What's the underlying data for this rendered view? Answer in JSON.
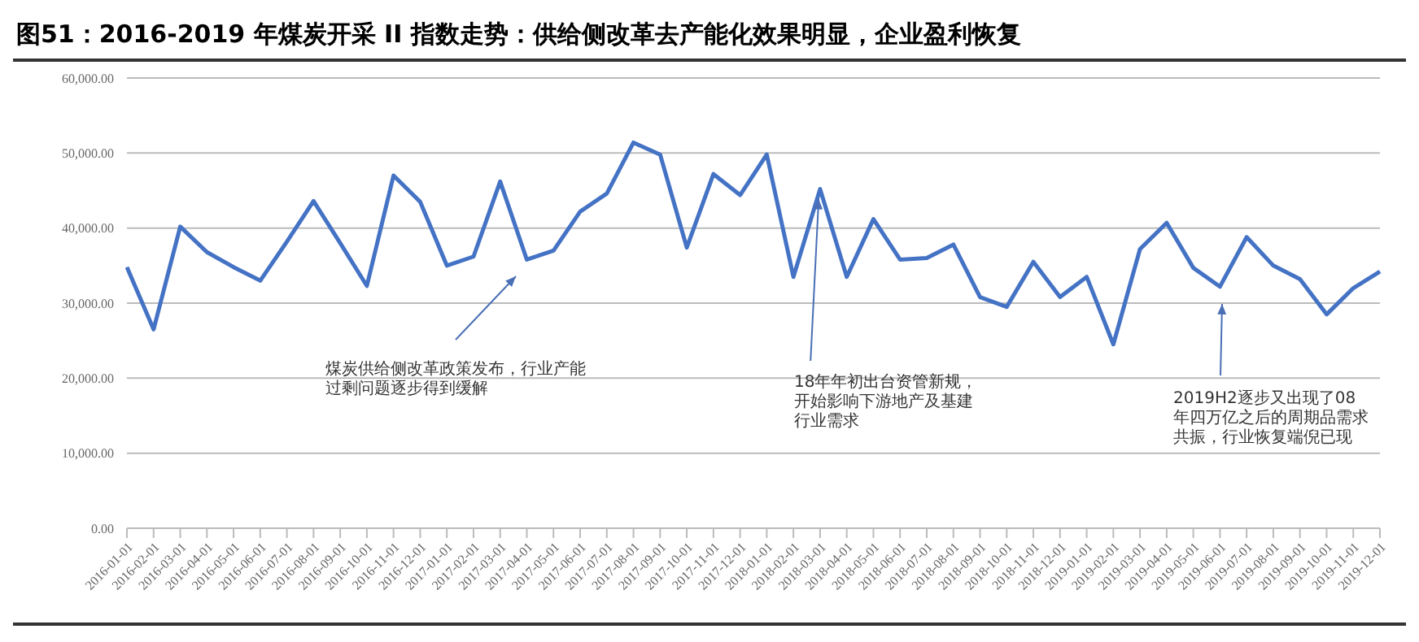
{
  "chart_data": {
    "type": "line",
    "title": "图51：2016-2019 年煤炭开采 II 指数走势：供给侧改革去产能化效果明显，企业盈利恢复",
    "categories": [
      "2016-01-01",
      "2016-02-01",
      "2016-03-01",
      "2016-04-01",
      "2016-05-01",
      "2016-06-01",
      "2016-07-01",
      "2016-08-01",
      "2016-09-01",
      "2016-10-01",
      "2016-11-01",
      "2016-12-01",
      "2017-01-01",
      "2017-02-01",
      "2017-03-01",
      "2017-04-01",
      "2017-05-01",
      "2017-06-01",
      "2017-07-01",
      "2017-08-01",
      "2017-09-01",
      "2017-10-01",
      "2017-11-01",
      "2017-12-01",
      "2018-01-01",
      "2018-02-01",
      "2018-03-01",
      "2018-04-01",
      "2018-05-01",
      "2018-06-01",
      "2018-07-01",
      "2018-08-01",
      "2018-09-01",
      "2018-10-01",
      "2018-11-01",
      "2018-12-01",
      "2019-01-01",
      "2019-02-01",
      "2019-03-01",
      "2019-04-01",
      "2019-05-01",
      "2019-06-01",
      "2019-07-01",
      "2019-08-01",
      "2019-09-01",
      "2019-10-01",
      "2019-11-01",
      "2019-12-01"
    ],
    "series": [
      {
        "color": "#4472c4",
        "values": [
          34800,
          26500,
          40200,
          36800,
          34800,
          33000,
          38200,
          43600,
          38000,
          32300,
          47000,
          43500,
          35000,
          36200,
          46200,
          35800,
          37000,
          42200,
          44600,
          51400,
          49800,
          37400,
          47200,
          44400,
          49800,
          33500,
          45200,
          33500,
          41200,
          35800,
          36000,
          37800,
          30800,
          29500,
          35500,
          30800,
          33500,
          24500,
          37200,
          40700,
          34700,
          32200,
          38800,
          35000,
          33200,
          28500,
          32000,
          34200
        ]
      }
    ],
    "ylim": [
      0,
      60000
    ],
    "yticks": [
      {
        "value": 0,
        "label": "0.00"
      },
      {
        "value": 10000,
        "label": "10,000.00"
      },
      {
        "value": 20000,
        "label": "20,000.00"
      },
      {
        "value": 30000,
        "label": "30,000.00"
      },
      {
        "value": 40000,
        "label": "40,000.00"
      },
      {
        "value": 50000,
        "label": "50,000.00"
      },
      {
        "value": 60000,
        "label": "60,000.00"
      }
    ],
    "grid": "y",
    "marker": "none",
    "line_style": "solid",
    "annotations": [
      "煤炭供给侧改革政策发布，行业产能过剩问题逐步得到缓解",
      {
        "text": "18年年初出台资管新规，开始影响下游地产及基建行业需求",
        "x": "2018-03-01",
        "y": 45200
      },
      "2019H2逐步又出现了08年四万亿之后的周期品需求共振，行业恢复端倪已现"
    ]
  }
}
